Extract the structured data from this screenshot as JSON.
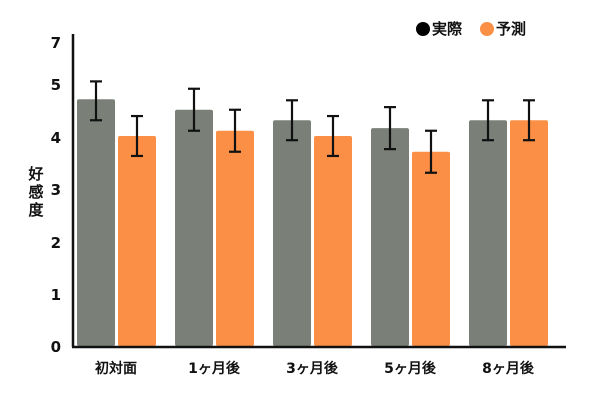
{
  "chart_data": {
    "type": "bar",
    "title": "",
    "xlabel": "",
    "ylabel": "好感度",
    "categories": [
      "初対面",
      "1ヶ月後",
      "3ヶ月後",
      "5ヶ月後",
      "8ヶ月後"
    ],
    "series": [
      {
        "name": "実際",
        "color": "#7a8078",
        "values": [
          4.7,
          4.5,
          4.3,
          4.15,
          4.3
        ],
        "error": [
          0.4,
          0.4,
          0.38,
          0.4,
          0.38
        ]
      },
      {
        "name": "予測",
        "color": "#fb8f46",
        "values": [
          4.0,
          4.1,
          4.0,
          3.7,
          4.3
        ],
        "error": [
          0.38,
          0.4,
          0.38,
          0.4,
          0.38
        ]
      }
    ],
    "yticks": [
      0,
      1,
      2,
      3,
      4,
      5,
      7
    ],
    "ylim": [
      0,
      7
    ],
    "axis_break": "between 5 and 7 (tick 6 omitted)",
    "grid": false,
    "legend_position": "top-right",
    "error_bars": true
  },
  "legend": {
    "items": [
      {
        "label": "実際",
        "dot_color": "#000000"
      },
      {
        "label": "予測",
        "dot_color": "#fb8f46"
      }
    ]
  },
  "axis": {
    "ylabel_chars": [
      "好",
      "感",
      "度"
    ]
  }
}
